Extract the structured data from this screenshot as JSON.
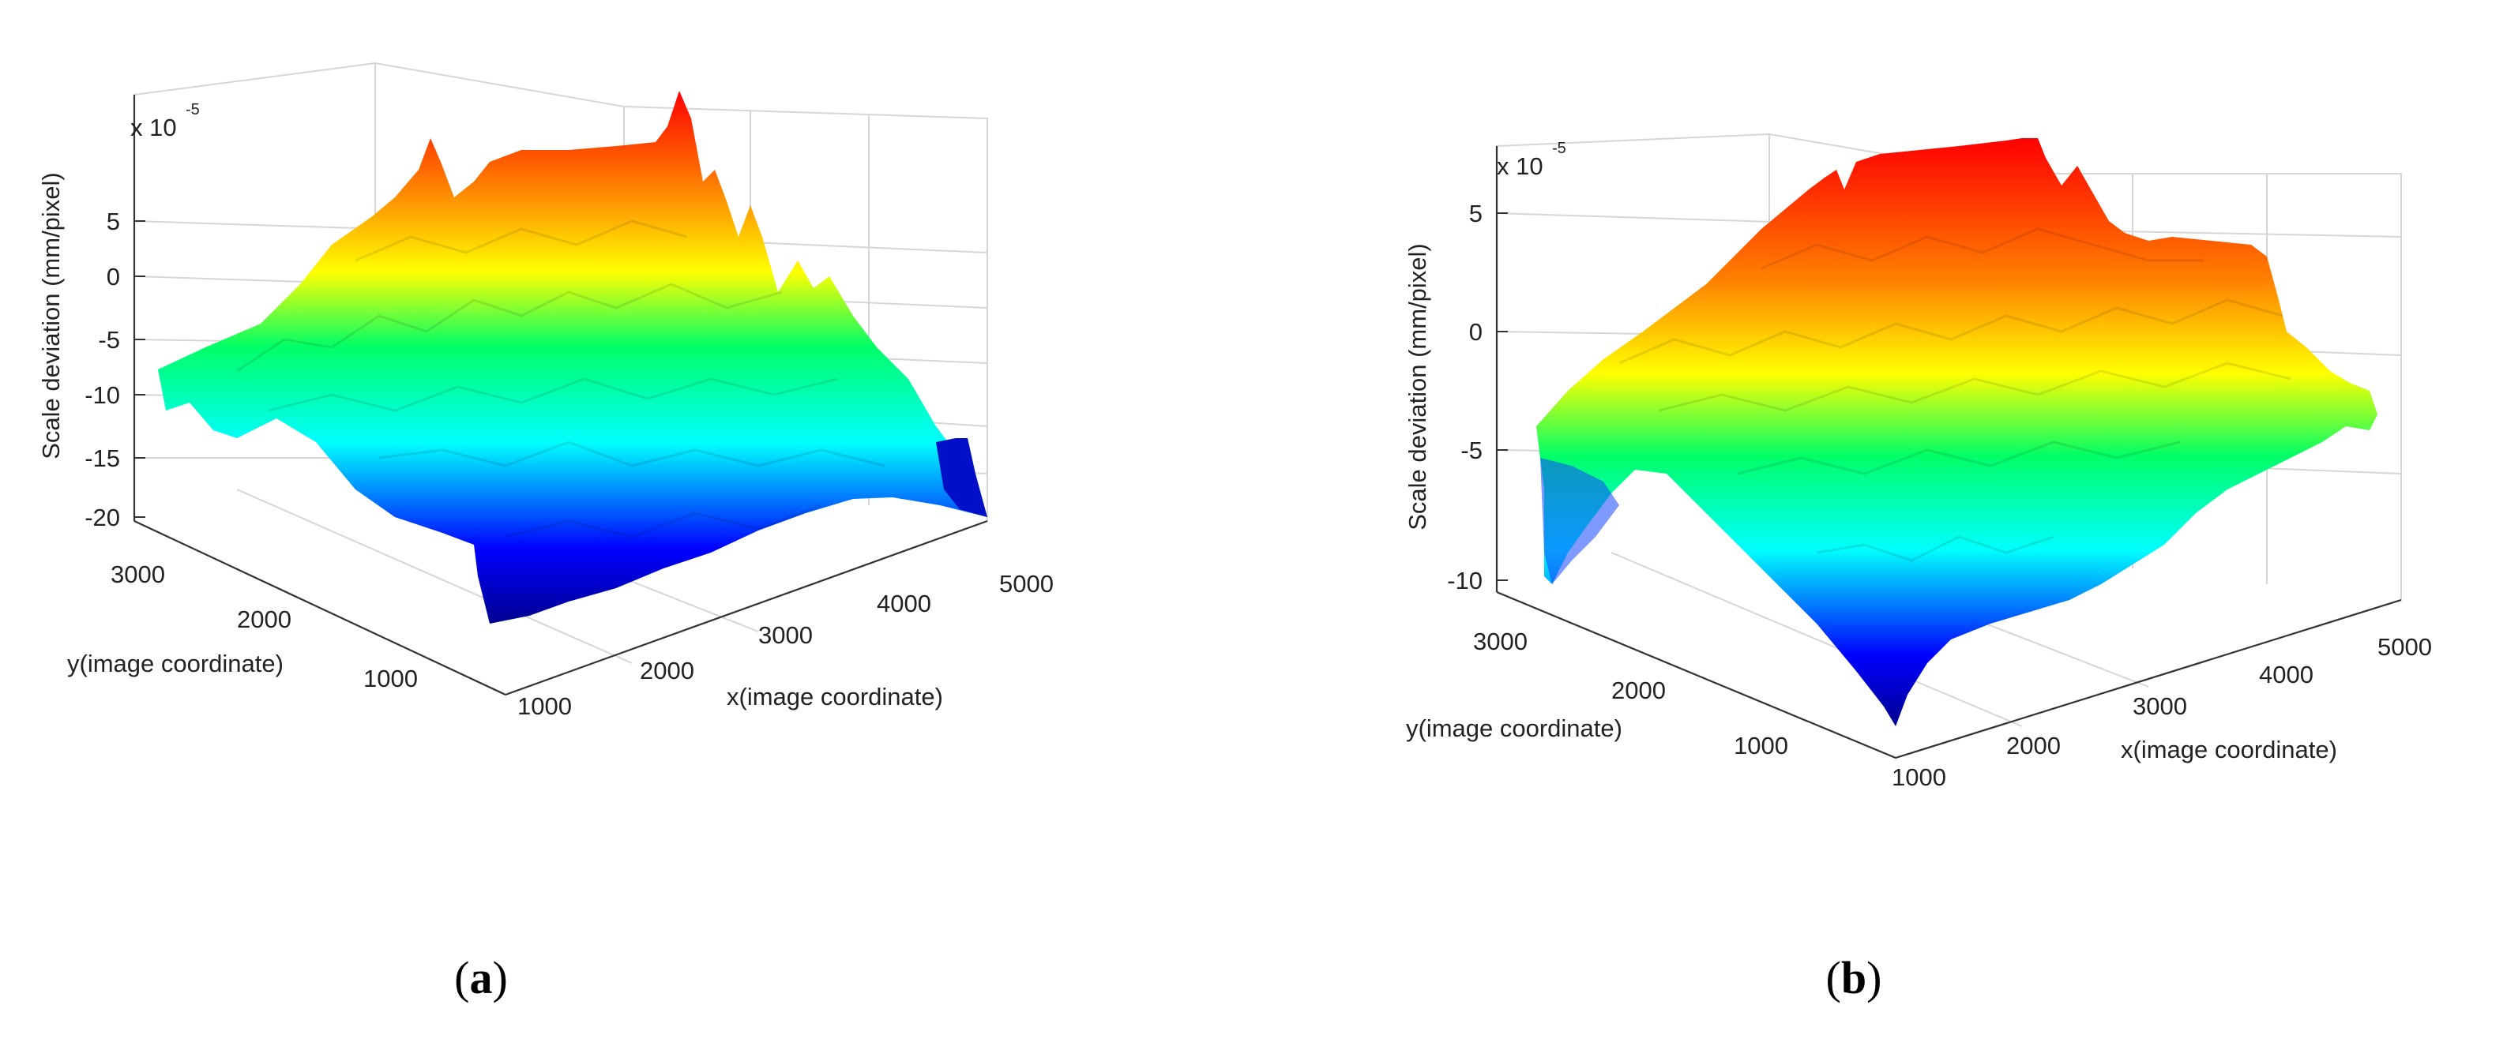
{
  "figure": {
    "panels": [
      {
        "label_open": "(",
        "label_letter": "a",
        "label_close": ")"
      },
      {
        "label_open": "(",
        "label_letter": "b",
        "label_close": ")"
      }
    ]
  },
  "chart_data": [
    {
      "type": "surface",
      "zlabel": "Scale deviation (mm/pixel)",
      "xlabel": "x(image coordinate)",
      "ylabel": "y(image coordinate)",
      "z_multiplier": "x 10",
      "z_multiplier_exp": "-5",
      "x_ticks": [
        "1000",
        "2000",
        "3000",
        "4000",
        "5000"
      ],
      "y_ticks": [
        "1000",
        "2000",
        "3000"
      ],
      "z_ticks": [
        "5",
        "0",
        "-5",
        "-10",
        "-15",
        "-20"
      ],
      "xlim": [
        700,
        5000
      ],
      "ylim": [
        500,
        3500
      ],
      "zlim": [
        -20,
        10
      ],
      "colormap": [
        "#00008f",
        "#0000ff",
        "#00ffff",
        "#00ff00",
        "#ffff00",
        "#ff8000",
        "#ff0000"
      ],
      "grid": true
    },
    {
      "type": "surface",
      "zlabel": "Scale deviation (mm/pixel)",
      "xlabel": "x(image coordinate)",
      "ylabel": "y(image coordinate)",
      "z_multiplier": "x 10",
      "z_multiplier_exp": "-5",
      "x_ticks": [
        "1000",
        "2000",
        "3000",
        "4000",
        "5000"
      ],
      "y_ticks": [
        "1000",
        "2000",
        "3000"
      ],
      "z_ticks": [
        "5",
        "0",
        "-5",
        "-10"
      ],
      "xlim": [
        700,
        5000
      ],
      "ylim": [
        500,
        3500
      ],
      "zlim": [
        -10,
        5
      ],
      "colormap": [
        "#00008f",
        "#0000ff",
        "#00ffff",
        "#00ff00",
        "#ffff00",
        "#ff8000",
        "#ff0000"
      ],
      "grid": true
    }
  ]
}
